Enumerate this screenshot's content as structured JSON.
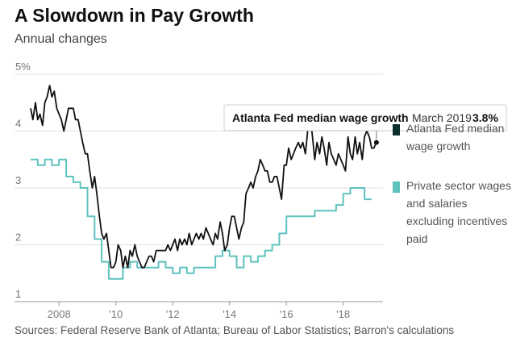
{
  "chart_data": {
    "type": "line",
    "title": "A Slowdown in Pay Growth",
    "subtitle": "Annual changes",
    "source": "Sources: Federal Reserve Bank of Atlanta; Bureau of Labor Statistics; Barron's calculations",
    "ylim": [
      1,
      5
    ],
    "xlim": [
      2007,
      2019.4
    ],
    "y_ticks": [
      {
        "value": 1,
        "label": "1"
      },
      {
        "value": 2,
        "label": "2"
      },
      {
        "value": 3,
        "label": "3"
      },
      {
        "value": 4,
        "label": "4"
      },
      {
        "value": 5,
        "label": "5%"
      }
    ],
    "x_ticks": [
      {
        "value": 2008,
        "label": "2008"
      },
      {
        "value": 2010,
        "label": "'10"
      },
      {
        "value": 2012,
        "label": "'12"
      },
      {
        "value": 2014,
        "label": "'14"
      },
      {
        "value": 2016,
        "label": "'16"
      },
      {
        "value": 2018,
        "label": "'18"
      }
    ],
    "grid": true,
    "legend_placement": "right",
    "tooltip": {
      "series": "Atlanta Fed median wage growth",
      "date": "March 2019",
      "value": "3.8%"
    },
    "series": [
      {
        "name": "Atlanta Fed median wage growth",
        "legend_lines": [
          "Atlanta Fed median",
          "wage growth"
        ],
        "color": "#111111",
        "points": [
          [
            2007.0,
            4.4
          ],
          [
            2007.08,
            4.2
          ],
          [
            2007.17,
            4.5
          ],
          [
            2007.25,
            4.2
          ],
          [
            2007.33,
            4.3
          ],
          [
            2007.42,
            4.1
          ],
          [
            2007.5,
            4.5
          ],
          [
            2007.58,
            4.6
          ],
          [
            2007.67,
            4.8
          ],
          [
            2007.75,
            4.6
          ],
          [
            2007.83,
            4.7
          ],
          [
            2007.92,
            4.4
          ],
          [
            2008.0,
            4.3
          ],
          [
            2008.08,
            4.2
          ],
          [
            2008.17,
            4.0
          ],
          [
            2008.25,
            4.2
          ],
          [
            2008.33,
            4.4
          ],
          [
            2008.42,
            4.4
          ],
          [
            2008.5,
            4.4
          ],
          [
            2008.58,
            4.2
          ],
          [
            2008.67,
            4.2
          ],
          [
            2008.75,
            4.0
          ],
          [
            2008.83,
            3.8
          ],
          [
            2008.92,
            3.6
          ],
          [
            2009.0,
            3.6
          ],
          [
            2009.08,
            3.3
          ],
          [
            2009.17,
            3.0
          ],
          [
            2009.25,
            3.2
          ],
          [
            2009.33,
            2.9
          ],
          [
            2009.42,
            2.5
          ],
          [
            2009.5,
            2.2
          ],
          [
            2009.58,
            2.1
          ],
          [
            2009.67,
            2.2
          ],
          [
            2009.75,
            1.9
          ],
          [
            2009.83,
            1.6
          ],
          [
            2009.92,
            1.6
          ],
          [
            2010.0,
            1.7
          ],
          [
            2010.08,
            2.0
          ],
          [
            2010.17,
            1.9
          ],
          [
            2010.25,
            1.6
          ],
          [
            2010.33,
            1.8
          ],
          [
            2010.42,
            1.6
          ],
          [
            2010.5,
            1.9
          ],
          [
            2010.58,
            1.8
          ],
          [
            2010.67,
            2.0
          ],
          [
            2010.75,
            1.8
          ],
          [
            2010.83,
            1.7
          ],
          [
            2010.92,
            1.6
          ],
          [
            2011.0,
            1.6
          ],
          [
            2011.08,
            1.7
          ],
          [
            2011.17,
            1.8
          ],
          [
            2011.25,
            1.8
          ],
          [
            2011.33,
            1.7
          ],
          [
            2011.42,
            1.9
          ],
          [
            2011.5,
            1.9
          ],
          [
            2011.58,
            1.9
          ],
          [
            2011.67,
            1.9
          ],
          [
            2011.75,
            1.9
          ],
          [
            2011.83,
            2.0
          ],
          [
            2011.92,
            1.9
          ],
          [
            2012.0,
            2.0
          ],
          [
            2012.08,
            2.1
          ],
          [
            2012.17,
            1.9
          ],
          [
            2012.25,
            2.1
          ],
          [
            2012.33,
            2.0
          ],
          [
            2012.42,
            2.1
          ],
          [
            2012.5,
            2.0
          ],
          [
            2012.58,
            2.2
          ],
          [
            2012.67,
            2.0
          ],
          [
            2012.75,
            2.1
          ],
          [
            2012.83,
            2.2
          ],
          [
            2012.92,
            2.1
          ],
          [
            2013.0,
            2.2
          ],
          [
            2013.08,
            2.1
          ],
          [
            2013.17,
            2.3
          ],
          [
            2013.25,
            2.2
          ],
          [
            2013.33,
            2.1
          ],
          [
            2013.42,
            2.0
          ],
          [
            2013.5,
            2.2
          ],
          [
            2013.58,
            2.1
          ],
          [
            2013.67,
            2.4
          ],
          [
            2013.75,
            2.2
          ],
          [
            2013.83,
            1.9
          ],
          [
            2013.92,
            2.0
          ],
          [
            2014.0,
            2.3
          ],
          [
            2014.08,
            2.5
          ],
          [
            2014.17,
            2.5
          ],
          [
            2014.25,
            2.3
          ],
          [
            2014.33,
            2.1
          ],
          [
            2014.42,
            2.3
          ],
          [
            2014.5,
            2.4
          ],
          [
            2014.58,
            2.9
          ],
          [
            2014.67,
            3.0
          ],
          [
            2014.75,
            3.1
          ],
          [
            2014.83,
            3.0
          ],
          [
            2014.92,
            3.2
          ],
          [
            2015.0,
            3.3
          ],
          [
            2015.08,
            3.5
          ],
          [
            2015.17,
            3.4
          ],
          [
            2015.25,
            3.3
          ],
          [
            2015.33,
            3.3
          ],
          [
            2015.42,
            3.1
          ],
          [
            2015.5,
            3.1
          ],
          [
            2015.58,
            3.2
          ],
          [
            2015.67,
            3.2
          ],
          [
            2015.75,
            3.0
          ],
          [
            2015.83,
            2.8
          ],
          [
            2015.92,
            3.4
          ],
          [
            2016.0,
            3.4
          ],
          [
            2016.08,
            3.7
          ],
          [
            2016.17,
            3.5
          ],
          [
            2016.25,
            3.6
          ],
          [
            2016.33,
            3.7
          ],
          [
            2016.42,
            3.8
          ],
          [
            2016.5,
            3.7
          ],
          [
            2016.58,
            3.8
          ],
          [
            2016.67,
            3.6
          ],
          [
            2016.75,
            4.0
          ],
          [
            2016.83,
            4.3
          ],
          [
            2016.92,
            3.9
          ],
          [
            2017.0,
            3.5
          ],
          [
            2017.08,
            3.8
          ],
          [
            2017.17,
            3.6
          ],
          [
            2017.25,
            3.9
          ],
          [
            2017.33,
            3.7
          ],
          [
            2017.42,
            3.4
          ],
          [
            2017.5,
            3.8
          ],
          [
            2017.58,
            3.6
          ],
          [
            2017.67,
            3.5
          ],
          [
            2017.75,
            3.4
          ],
          [
            2017.83,
            3.6
          ],
          [
            2017.92,
            3.5
          ],
          [
            2018.0,
            3.4
          ],
          [
            2018.08,
            3.3
          ],
          [
            2018.17,
            3.9
          ],
          [
            2018.25,
            3.6
          ],
          [
            2018.33,
            3.5
          ],
          [
            2018.42,
            3.9
          ],
          [
            2018.5,
            3.6
          ],
          [
            2018.58,
            3.8
          ],
          [
            2018.67,
            3.5
          ],
          [
            2018.75,
            3.9
          ],
          [
            2018.83,
            4.0
          ],
          [
            2018.92,
            3.9
          ],
          [
            2019.0,
            3.7
          ],
          [
            2019.08,
            3.7
          ],
          [
            2019.17,
            3.8
          ]
        ]
      },
      {
        "name": "Private sector wages and salaries excluding incentives paid",
        "legend_lines": [
          "Private sector wages",
          "and salaries",
          "excluding incentives",
          "paid"
        ],
        "color": "#5ec2bf",
        "points": [
          [
            2007.0,
            3.5
          ],
          [
            2007.25,
            3.5
          ],
          [
            2007.25,
            3.4
          ],
          [
            2007.5,
            3.4
          ],
          [
            2007.5,
            3.5
          ],
          [
            2007.75,
            3.5
          ],
          [
            2007.75,
            3.4
          ],
          [
            2008.0,
            3.4
          ],
          [
            2008.0,
            3.5
          ],
          [
            2008.25,
            3.5
          ],
          [
            2008.25,
            3.2
          ],
          [
            2008.5,
            3.2
          ],
          [
            2008.5,
            3.1
          ],
          [
            2008.75,
            3.1
          ],
          [
            2008.75,
            3.0
          ],
          [
            2009.0,
            3.0
          ],
          [
            2009.0,
            2.5
          ],
          [
            2009.25,
            2.5
          ],
          [
            2009.25,
            2.1
          ],
          [
            2009.5,
            2.1
          ],
          [
            2009.5,
            1.7
          ],
          [
            2009.75,
            1.7
          ],
          [
            2009.75,
            1.4
          ],
          [
            2010.25,
            1.4
          ],
          [
            2010.25,
            1.6
          ],
          [
            2010.5,
            1.6
          ],
          [
            2010.5,
            1.7
          ],
          [
            2010.75,
            1.7
          ],
          [
            2010.75,
            1.6
          ],
          [
            2011.5,
            1.6
          ],
          [
            2011.5,
            1.7
          ],
          [
            2011.75,
            1.7
          ],
          [
            2011.75,
            1.6
          ],
          [
            2012.0,
            1.6
          ],
          [
            2012.0,
            1.5
          ],
          [
            2012.25,
            1.5
          ],
          [
            2012.25,
            1.6
          ],
          [
            2012.5,
            1.6
          ],
          [
            2012.5,
            1.5
          ],
          [
            2012.75,
            1.5
          ],
          [
            2012.75,
            1.6
          ],
          [
            2013.5,
            1.6
          ],
          [
            2013.5,
            1.8
          ],
          [
            2013.75,
            1.8
          ],
          [
            2013.75,
            1.9
          ],
          [
            2014.0,
            1.9
          ],
          [
            2014.0,
            1.8
          ],
          [
            2014.25,
            1.8
          ],
          [
            2014.25,
            1.6
          ],
          [
            2014.5,
            1.6
          ],
          [
            2014.5,
            1.8
          ],
          [
            2014.75,
            1.8
          ],
          [
            2014.75,
            1.7
          ],
          [
            2015.0,
            1.7
          ],
          [
            2015.0,
            1.8
          ],
          [
            2015.25,
            1.8
          ],
          [
            2015.25,
            1.9
          ],
          [
            2015.5,
            1.9
          ],
          [
            2015.5,
            2.0
          ],
          [
            2015.75,
            2.0
          ],
          [
            2015.75,
            2.2
          ],
          [
            2016.0,
            2.2
          ],
          [
            2016.0,
            2.5
          ],
          [
            2017.0,
            2.5
          ],
          [
            2017.0,
            2.6
          ],
          [
            2017.75,
            2.6
          ],
          [
            2017.75,
            2.7
          ],
          [
            2018.0,
            2.7
          ],
          [
            2018.0,
            2.9
          ],
          [
            2018.25,
            2.9
          ],
          [
            2018.25,
            3.0
          ],
          [
            2018.75,
            3.0
          ],
          [
            2018.75,
            2.8
          ],
          [
            2019.0,
            2.8
          ]
        ]
      }
    ]
  }
}
